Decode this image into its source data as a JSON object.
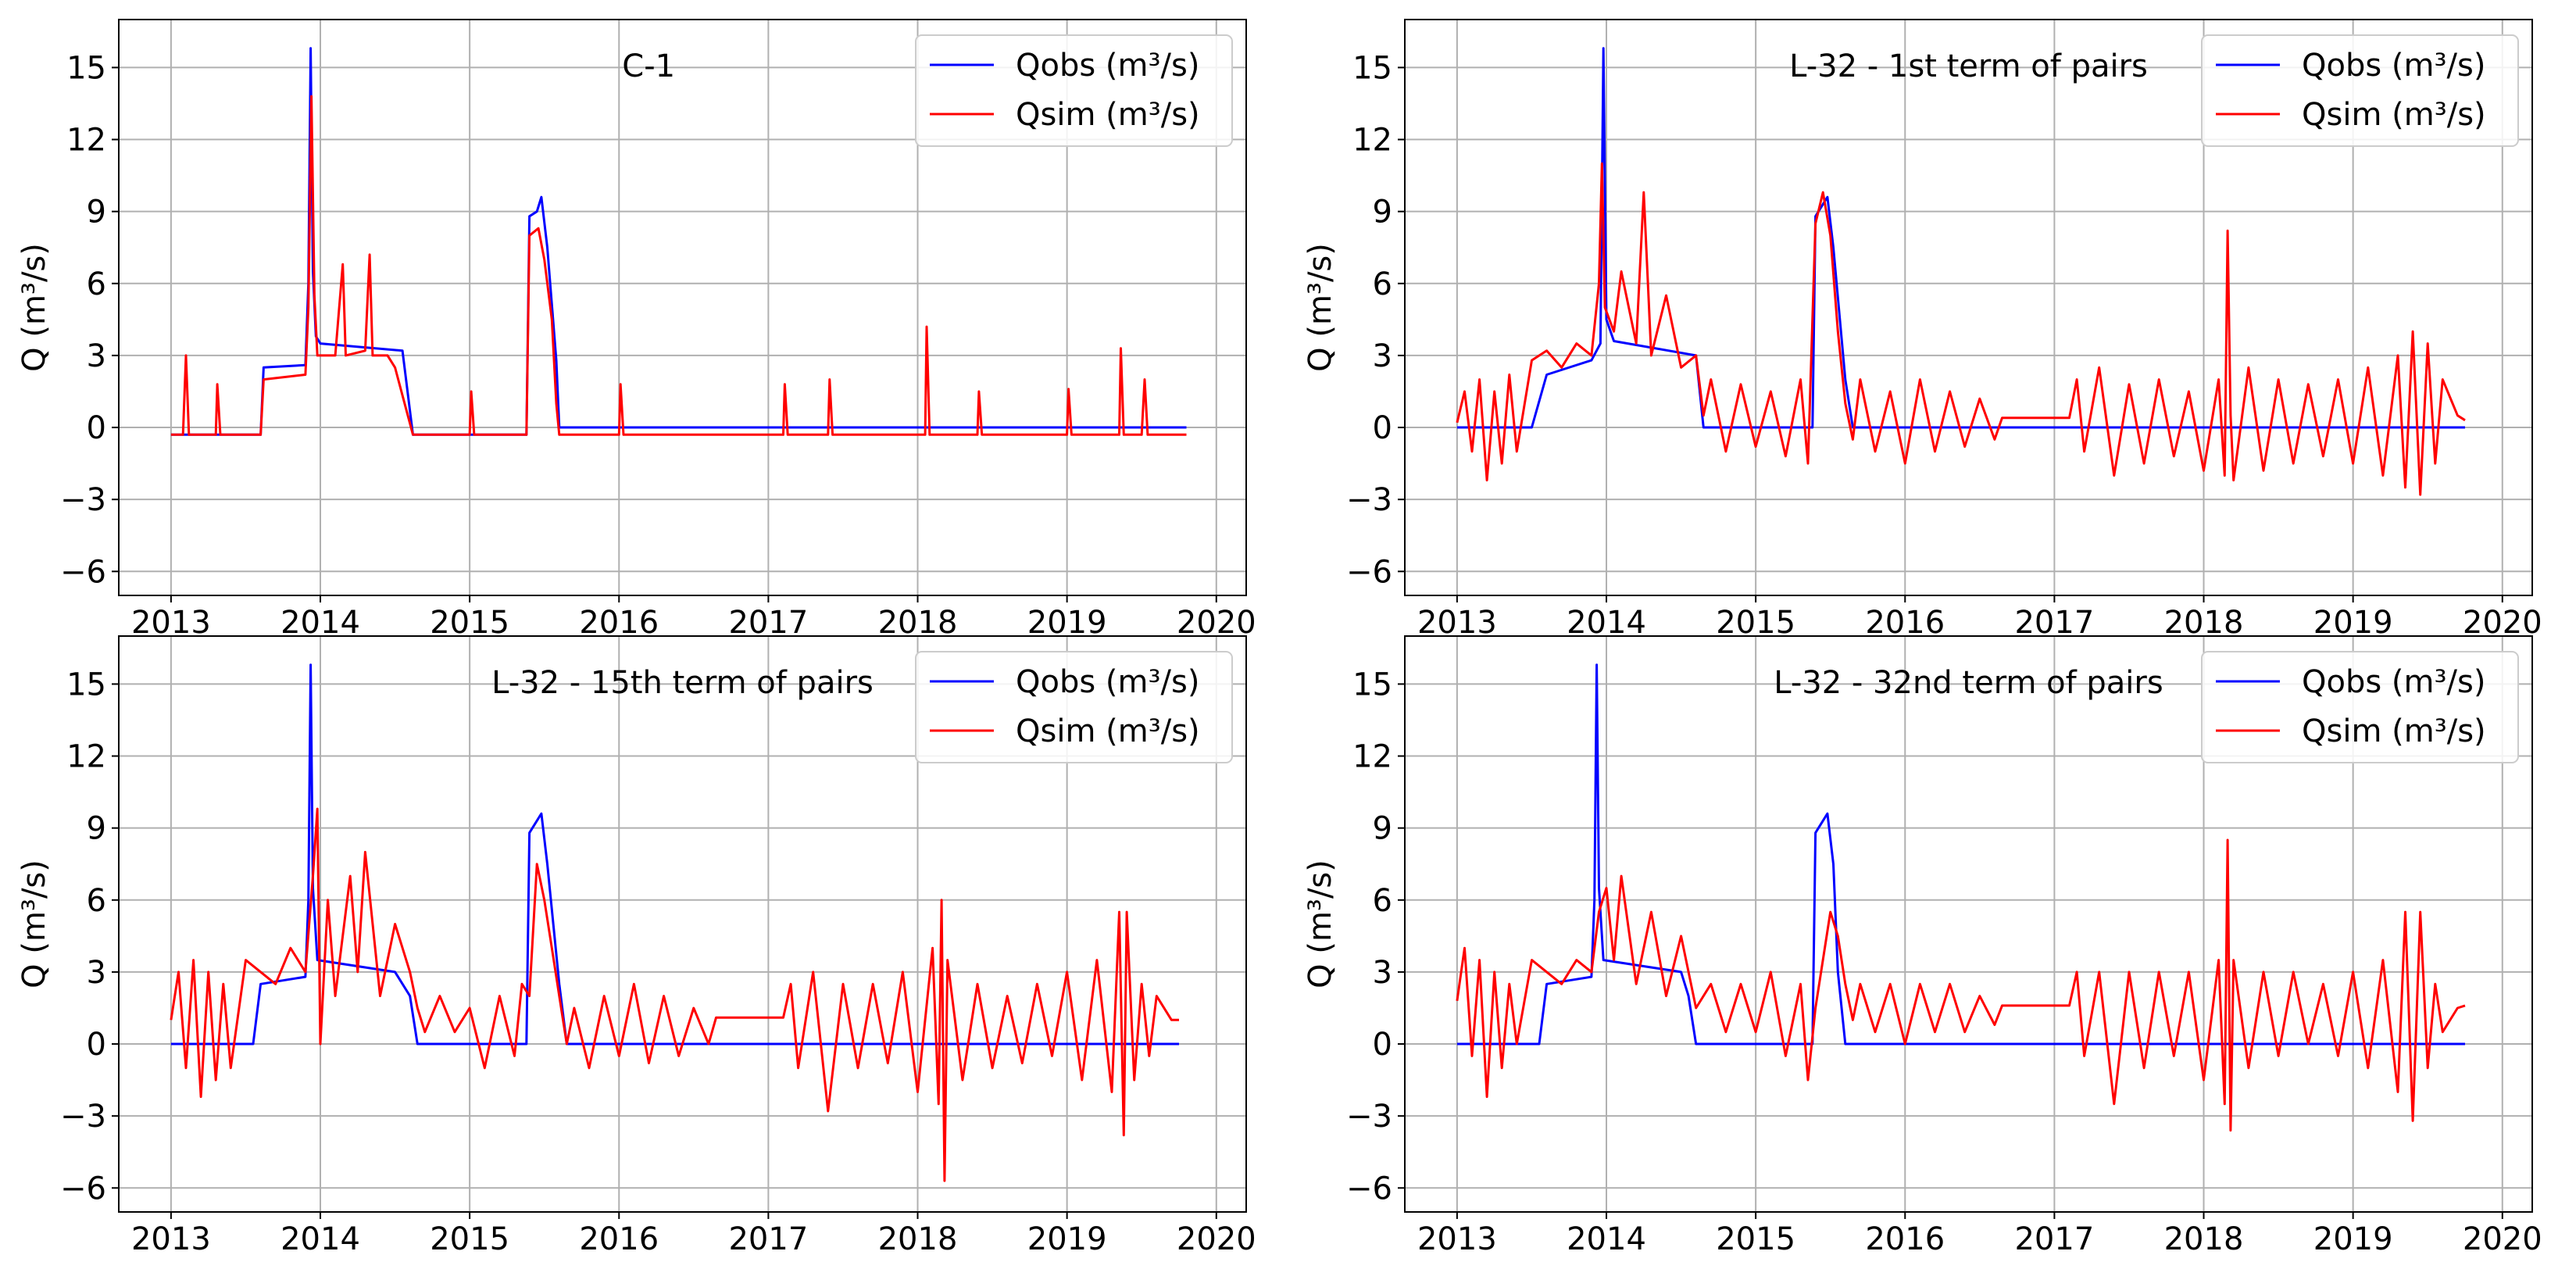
{
  "figure": {
    "ylabel": "Q (m³/s)",
    "legend_labels": [
      "Qobs (m³/s)",
      "Qsim (m³/s)"
    ],
    "colors": {
      "obs": "#0000ff",
      "sim": "#ff0000",
      "grid": "#b0b0b0"
    }
  },
  "chart_data": [
    {
      "type": "line",
      "title": "C-1",
      "xlabel": "",
      "ylabel": "Q (m³/s)",
      "xlim": [
        2012.65,
        2020.2
      ],
      "ylim": [
        -7,
        17
      ],
      "x_ticks": [
        2013,
        2014,
        2015,
        2016,
        2017,
        2018,
        2019,
        2020
      ],
      "y_ticks": [
        -6,
        -3,
        0,
        3,
        6,
        9,
        12,
        15
      ],
      "legend_position": "top-right",
      "grid": true,
      "series": [
        {
          "name": "Qobs (m³/s)",
          "color": "#0000ff",
          "x": [
            2013.0,
            2013.6,
            2013.62,
            2013.9,
            2013.92,
            2013.935,
            2013.95,
            2013.97,
            2014.0,
            2014.55,
            2014.62,
            2015.38,
            2015.4,
            2015.45,
            2015.48,
            2015.52,
            2015.58,
            2015.6,
            2019.8
          ],
          "y": [
            -0.3,
            -0.3,
            2.5,
            2.6,
            6.0,
            15.8,
            6.5,
            3.8,
            3.5,
            3.2,
            -0.3,
            -0.3,
            8.8,
            9.0,
            9.6,
            7.5,
            2.8,
            0.0,
            0.0
          ]
        },
        {
          "name": "Qsim (m³/s)",
          "color": "#ff0000",
          "x": [
            2013.0,
            2013.08,
            2013.1,
            2013.12,
            2013.3,
            2013.31,
            2013.33,
            2013.6,
            2013.62,
            2013.9,
            2013.92,
            2013.94,
            2013.96,
            2013.98,
            2014.1,
            2014.15,
            2014.17,
            2014.3,
            2014.33,
            2014.35,
            2014.45,
            2014.5,
            2014.62,
            2015.0,
            2015.01,
            2015.03,
            2015.38,
            2015.4,
            2015.46,
            2015.5,
            2015.55,
            2015.58,
            2015.6,
            2016.0,
            2016.01,
            2016.03,
            2017.1,
            2017.11,
            2017.13,
            2017.4,
            2017.41,
            2017.43,
            2018.05,
            2018.06,
            2018.08,
            2018.4,
            2018.41,
            2018.43,
            2019.0,
            2019.01,
            2019.03,
            2019.35,
            2019.36,
            2019.38,
            2019.5,
            2019.52,
            2019.54,
            2019.8
          ],
          "y": [
            -0.3,
            -0.3,
            3.0,
            -0.3,
            -0.3,
            1.8,
            -0.3,
            -0.3,
            2.0,
            2.2,
            5.0,
            13.8,
            5.5,
            3.0,
            3.0,
            6.8,
            3.0,
            3.2,
            7.2,
            3.0,
            3.0,
            2.5,
            -0.3,
            -0.3,
            1.5,
            -0.3,
            -0.3,
            8.0,
            8.3,
            7.0,
            4.5,
            1.0,
            -0.3,
            -0.3,
            1.8,
            -0.3,
            -0.3,
            1.8,
            -0.3,
            -0.3,
            2.0,
            -0.3,
            -0.3,
            4.2,
            -0.3,
            -0.3,
            1.5,
            -0.3,
            -0.3,
            1.6,
            -0.3,
            -0.3,
            3.3,
            -0.3,
            -0.3,
            2.0,
            -0.3,
            -0.3
          ]
        }
      ]
    },
    {
      "type": "line",
      "title": "L-32 - 1st term of pairs",
      "xlabel": "",
      "ylabel": "Q (m³/s)",
      "xlim": [
        2012.65,
        2020.2
      ],
      "ylim": [
        -7,
        17
      ],
      "x_ticks": [
        2013,
        2014,
        2015,
        2016,
        2017,
        2018,
        2019,
        2020
      ],
      "y_ticks": [
        -6,
        -3,
        0,
        3,
        6,
        9,
        12,
        15
      ],
      "legend_position": "top-right",
      "grid": true,
      "series": [
        {
          "name": "Qobs (m³/s)",
          "color": "#0000ff",
          "x": [
            2013.0,
            2013.5,
            2013.6,
            2013.9,
            2013.96,
            2013.98,
            2014.0,
            2014.05,
            2014.6,
            2014.65,
            2015.38,
            2015.4,
            2015.48,
            2015.52,
            2015.6,
            2015.65,
            2019.75
          ],
          "y": [
            0.0,
            0.0,
            2.2,
            2.8,
            3.5,
            15.8,
            4.5,
            3.6,
            3.0,
            0.0,
            0.0,
            8.8,
            9.6,
            7.5,
            2.0,
            0.0,
            0.0
          ]
        },
        {
          "name": "Qsim (m³/s)",
          "color": "#ff0000",
          "x": [
            2013.0,
            2013.05,
            2013.1,
            2013.15,
            2013.2,
            2013.25,
            2013.3,
            2013.35,
            2013.4,
            2013.5,
            2013.6,
            2013.7,
            2013.8,
            2013.9,
            2013.95,
            2013.97,
            2013.99,
            2014.05,
            2014.1,
            2014.2,
            2014.25,
            2014.3,
            2014.4,
            2014.5,
            2014.6,
            2014.65,
            2014.7,
            2014.8,
            2014.9,
            2015.0,
            2015.1,
            2015.2,
            2015.3,
            2015.35,
            2015.4,
            2015.45,
            2015.5,
            2015.55,
            2015.6,
            2015.65,
            2015.7,
            2015.8,
            2015.9,
            2016.0,
            2016.1,
            2016.2,
            2016.3,
            2016.4,
            2016.5,
            2016.6,
            2016.65,
            2017.1,
            2017.15,
            2017.2,
            2017.3,
            2017.4,
            2017.5,
            2017.6,
            2017.7,
            2017.8,
            2017.9,
            2018.0,
            2018.1,
            2018.14,
            2018.16,
            2018.18,
            2018.2,
            2018.3,
            2018.4,
            2018.5,
            2018.6,
            2018.7,
            2018.8,
            2018.9,
            2019.0,
            2019.1,
            2019.2,
            2019.3,
            2019.35,
            2019.4,
            2019.45,
            2019.5,
            2019.55,
            2019.6,
            2019.7,
            2019.75
          ],
          "y": [
            0.2,
            1.5,
            -1.0,
            2.0,
            -2.2,
            1.5,
            -1.5,
            2.2,
            -1.0,
            2.8,
            3.2,
            2.5,
            3.5,
            3.0,
            6.0,
            11.0,
            5.0,
            4.0,
            6.5,
            3.5,
            9.8,
            3.0,
            5.5,
            2.5,
            3.0,
            0.5,
            2.0,
            -1.0,
            1.8,
            -0.8,
            1.5,
            -1.2,
            2.0,
            -1.5,
            8.5,
            9.8,
            8.0,
            4.0,
            1.0,
            -0.5,
            2.0,
            -1.0,
            1.5,
            -1.5,
            2.0,
            -1.0,
            1.5,
            -0.8,
            1.2,
            -0.5,
            0.4,
            0.4,
            2.0,
            -1.0,
            2.5,
            -2.0,
            1.8,
            -1.5,
            2.0,
            -1.2,
            1.5,
            -1.8,
            2.0,
            -2.0,
            8.2,
            0.5,
            -2.2,
            2.5,
            -1.8,
            2.0,
            -1.5,
            1.8,
            -1.2,
            2.0,
            -1.5,
            2.5,
            -2.0,
            3.0,
            -2.5,
            4.0,
            -2.8,
            3.5,
            -1.5,
            2.0,
            0.5,
            0.3
          ]
        }
      ]
    },
    {
      "type": "line",
      "title": "L-32 - 15th term of pairs",
      "xlabel": "",
      "ylabel": "Q (m³/s)",
      "xlim": [
        2012.65,
        2020.2
      ],
      "ylim": [
        -7,
        17
      ],
      "x_ticks": [
        2013,
        2014,
        2015,
        2016,
        2017,
        2018,
        2019,
        2020
      ],
      "y_ticks": [
        -6,
        -3,
        0,
        3,
        6,
        9,
        12,
        15
      ],
      "legend_position": "top-right",
      "grid": true,
      "series": [
        {
          "name": "Qobs (m³/s)",
          "color": "#0000ff",
          "x": [
            2013.0,
            2013.55,
            2013.6,
            2013.9,
            2013.92,
            2013.935,
            2013.95,
            2013.98,
            2014.5,
            2014.6,
            2014.65,
            2015.38,
            2015.4,
            2015.48,
            2015.52,
            2015.6,
            2015.65,
            2019.75
          ],
          "y": [
            0.0,
            0.0,
            2.5,
            2.8,
            6.0,
            15.8,
            6.5,
            3.5,
            3.0,
            2.0,
            0.0,
            0.0,
            8.8,
            9.6,
            7.5,
            2.5,
            0.0,
            0.0
          ]
        },
        {
          "name": "Qsim (m³/s)",
          "color": "#ff0000",
          "x": [
            2013.0,
            2013.05,
            2013.1,
            2013.15,
            2013.2,
            2013.25,
            2013.3,
            2013.35,
            2013.4,
            2013.5,
            2013.6,
            2013.7,
            2013.8,
            2013.9,
            2013.95,
            2013.98,
            2014.0,
            2014.05,
            2014.1,
            2014.2,
            2014.25,
            2014.3,
            2014.4,
            2014.5,
            2014.6,
            2014.65,
            2014.7,
            2014.8,
            2014.9,
            2015.0,
            2015.1,
            2015.2,
            2015.3,
            2015.35,
            2015.4,
            2015.45,
            2015.5,
            2015.55,
            2015.6,
            2015.65,
            2015.7,
            2015.8,
            2015.9,
            2016.0,
            2016.1,
            2016.2,
            2016.3,
            2016.4,
            2016.5,
            2016.6,
            2016.65,
            2017.1,
            2017.15,
            2017.2,
            2017.3,
            2017.4,
            2017.5,
            2017.6,
            2017.7,
            2017.8,
            2017.9,
            2018.0,
            2018.1,
            2018.14,
            2018.16,
            2018.18,
            2018.2,
            2018.3,
            2018.4,
            2018.5,
            2018.6,
            2018.7,
            2018.8,
            2018.9,
            2019.0,
            2019.1,
            2019.2,
            2019.3,
            2019.35,
            2019.38,
            2019.4,
            2019.45,
            2019.5,
            2019.55,
            2019.6,
            2019.7,
            2019.75
          ],
          "y": [
            1.0,
            3.0,
            -1.0,
            3.5,
            -2.2,
            3.0,
            -1.5,
            2.5,
            -1.0,
            3.5,
            3.0,
            2.5,
            4.0,
            3.0,
            7.0,
            9.8,
            0.0,
            6.0,
            2.0,
            7.0,
            3.0,
            8.0,
            2.0,
            5.0,
            3.0,
            1.5,
            0.5,
            2.0,
            0.5,
            1.5,
            -1.0,
            2.0,
            -0.5,
            2.5,
            2.0,
            7.5,
            6.0,
            4.0,
            2.0,
            0.0,
            1.5,
            -1.0,
            2.0,
            -0.5,
            2.5,
            -0.8,
            2.0,
            -0.5,
            1.5,
            0.0,
            1.1,
            1.1,
            2.5,
            -1.0,
            3.0,
            -2.8,
            2.5,
            -1.0,
            2.5,
            -0.8,
            3.0,
            -2.0,
            4.0,
            -2.5,
            6.0,
            -5.7,
            3.5,
            -1.5,
            2.5,
            -1.0,
            2.0,
            -0.8,
            2.5,
            -0.5,
            3.0,
            -1.5,
            3.5,
            -2.0,
            5.5,
            -3.8,
            5.5,
            -1.5,
            2.5,
            -0.5,
            2.0,
            1.0,
            1.0
          ]
        }
      ]
    },
    {
      "type": "line",
      "title": "L-32 - 32nd term of pairs",
      "xlabel": "",
      "ylabel": "Q (m³/s)",
      "xlim": [
        2012.65,
        2020.2
      ],
      "ylim": [
        -7,
        17
      ],
      "x_ticks": [
        2013,
        2014,
        2015,
        2016,
        2017,
        2018,
        2019,
        2020
      ],
      "y_ticks": [
        -6,
        -3,
        0,
        3,
        6,
        9,
        12,
        15
      ],
      "legend_position": "top-right",
      "grid": true,
      "series": [
        {
          "name": "Qobs (m³/s)",
          "color": "#0000ff",
          "x": [
            2013.0,
            2013.55,
            2013.6,
            2013.9,
            2013.92,
            2013.935,
            2013.95,
            2013.98,
            2014.5,
            2014.55,
            2014.6,
            2015.38,
            2015.4,
            2015.48,
            2015.52,
            2015.55,
            2015.6,
            2019.75
          ],
          "y": [
            0.0,
            0.0,
            2.5,
            2.8,
            6.0,
            15.8,
            6.5,
            3.5,
            3.0,
            2.0,
            0.0,
            0.0,
            8.8,
            9.6,
            7.5,
            3.0,
            0.0,
            0.0
          ]
        },
        {
          "name": "Qsim (m³/s)",
          "color": "#ff0000",
          "x": [
            2013.0,
            2013.05,
            2013.1,
            2013.15,
            2013.2,
            2013.25,
            2013.3,
            2013.35,
            2013.4,
            2013.5,
            2013.6,
            2013.7,
            2013.8,
            2013.9,
            2013.95,
            2014.0,
            2014.05,
            2014.1,
            2014.2,
            2014.3,
            2014.4,
            2014.5,
            2014.6,
            2014.7,
            2014.8,
            2014.9,
            2015.0,
            2015.1,
            2015.2,
            2015.3,
            2015.35,
            2015.4,
            2015.5,
            2015.55,
            2015.6,
            2015.65,
            2015.7,
            2015.8,
            2015.9,
            2016.0,
            2016.1,
            2016.2,
            2016.3,
            2016.4,
            2016.5,
            2016.6,
            2016.65,
            2017.1,
            2017.15,
            2017.2,
            2017.3,
            2017.4,
            2017.5,
            2017.6,
            2017.7,
            2017.8,
            2017.9,
            2018.0,
            2018.1,
            2018.14,
            2018.16,
            2018.18,
            2018.2,
            2018.3,
            2018.4,
            2018.5,
            2018.6,
            2018.7,
            2018.8,
            2018.9,
            2019.0,
            2019.1,
            2019.2,
            2019.3,
            2019.35,
            2019.4,
            2019.45,
            2019.5,
            2019.55,
            2019.6,
            2019.7,
            2019.75
          ],
          "y": [
            1.8,
            4.0,
            -0.5,
            3.5,
            -2.2,
            3.0,
            -1.0,
            2.5,
            0.0,
            3.5,
            3.0,
            2.5,
            3.5,
            3.0,
            5.5,
            6.5,
            3.5,
            7.0,
            2.5,
            5.5,
            2.0,
            4.5,
            1.5,
            2.5,
            0.5,
            2.5,
            0.5,
            3.0,
            -0.5,
            2.5,
            -1.5,
            1.5,
            5.5,
            4.5,
            2.5,
            1.0,
            2.5,
            0.5,
            2.5,
            0.0,
            2.5,
            0.5,
            2.5,
            0.5,
            2.0,
            0.8,
            1.6,
            1.6,
            3.0,
            -0.5,
            3.0,
            -2.5,
            3.0,
            -1.0,
            3.0,
            -0.5,
            3.0,
            -1.5,
            3.5,
            -2.5,
            8.5,
            -3.6,
            3.5,
            -1.0,
            3.0,
            -0.5,
            3.0,
            0.0,
            2.5,
            -0.5,
            3.0,
            -1.0,
            3.5,
            -2.0,
            5.5,
            -3.2,
            5.5,
            -1.0,
            2.5,
            0.5,
            1.5,
            1.6
          ]
        }
      ]
    }
  ]
}
